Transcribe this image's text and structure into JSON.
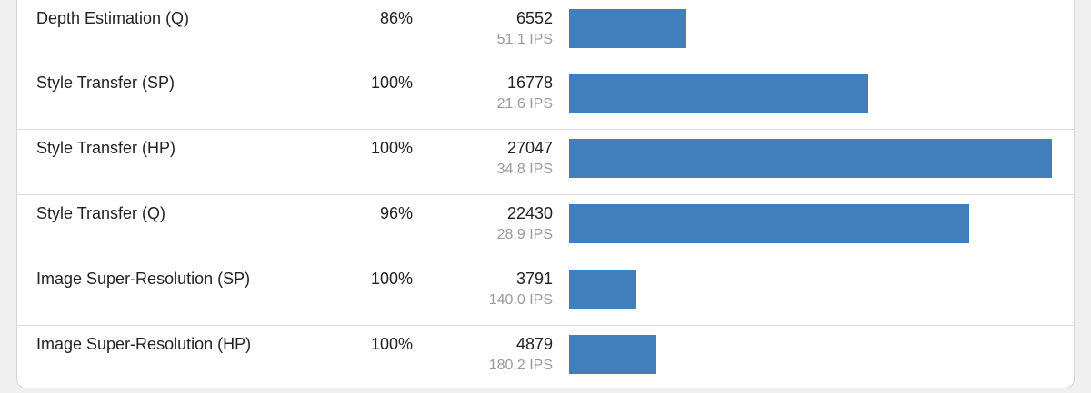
{
  "colors": {
    "bar": "#437ebc",
    "ips_text": "#9a9a9a"
  },
  "max_score": 27047,
  "rows": [
    {
      "name": "Depth Estimation (Q)",
      "accuracy": "86%",
      "score": "6552",
      "ips": "51.1 IPS",
      "score_value": 6552
    },
    {
      "name": "Style Transfer (SP)",
      "accuracy": "100%",
      "score": "16778",
      "ips": "21.6 IPS",
      "score_value": 16778
    },
    {
      "name": "Style Transfer (HP)",
      "accuracy": "100%",
      "score": "27047",
      "ips": "34.8 IPS",
      "score_value": 27047
    },
    {
      "name": "Style Transfer (Q)",
      "accuracy": "96%",
      "score": "22430",
      "ips": "28.9 IPS",
      "score_value": 22430
    },
    {
      "name": "Image Super-Resolution (SP)",
      "accuracy": "100%",
      "score": "3791",
      "ips": "140.0 IPS",
      "score_value": 3791
    },
    {
      "name": "Image Super-Resolution (HP)",
      "accuracy": "100%",
      "score": "4879",
      "ips": "180.2 IPS",
      "score_value": 4879
    }
  ]
}
